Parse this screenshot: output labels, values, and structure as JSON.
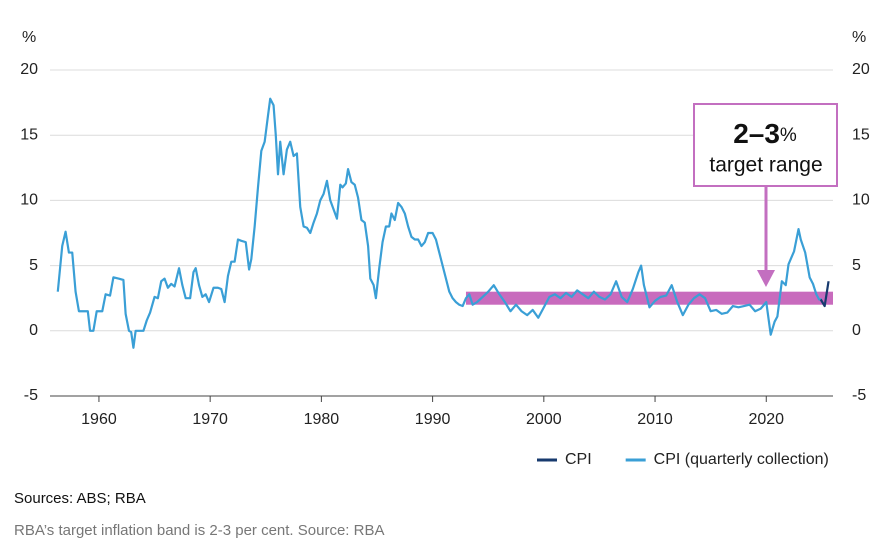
{
  "chart_data": {
    "type": "line",
    "y_label": "%",
    "y2_label": "%",
    "xlim": [
      1955.6,
      2026
    ],
    "xticks": [
      1960,
      1970,
      1980,
      1990,
      2000,
      2010,
      2020
    ],
    "ylim": [
      -5,
      20
    ],
    "yticks": [
      -5,
      0,
      5,
      10,
      15,
      20
    ],
    "y2lim": [
      -5,
      20
    ],
    "y2ticks": [
      -5,
      0,
      5,
      10,
      15,
      20
    ],
    "grid": true,
    "legend": "bottom-right",
    "target_band": {
      "x": [
        1993,
        2026
      ],
      "y": [
        2,
        3
      ],
      "color": "#c86bbd"
    },
    "annotation": {
      "title": "2–3",
      "unit": "%",
      "text": "target range",
      "color": "#c36fc0"
    },
    "series": [
      {
        "name": "CPI",
        "color": "#173a6e",
        "x": [
          2024.9,
          2025.25,
          2025.6
        ],
        "values": [
          2.4,
          1.9,
          3.8
        ]
      },
      {
        "name": "CPI (quarterly collection)",
        "color": "#3a9fd6",
        "x": [
          1956.3,
          1956.7,
          1957.0,
          1957.3,
          1957.6,
          1957.9,
          1958.2,
          1958.6,
          1959.0,
          1959.2,
          1959.5,
          1959.8,
          1960.3,
          1960.6,
          1961.0,
          1961.3,
          1961.8,
          1962.2,
          1962.4,
          1962.7,
          1962.9,
          1963.1,
          1963.3,
          1963.7,
          1964.0,
          1964.3,
          1964.6,
          1965.0,
          1965.3,
          1965.6,
          1965.9,
          1966.2,
          1966.5,
          1966.8,
          1967.2,
          1967.5,
          1967.8,
          1968.2,
          1968.5,
          1968.7,
          1969.0,
          1969.3,
          1969.6,
          1969.9,
          1970.3,
          1970.7,
          1971.0,
          1971.3,
          1971.6,
          1971.9,
          1972.2,
          1972.5,
          1972.8,
          1973.2,
          1973.5,
          1973.7,
          1974.0,
          1974.3,
          1974.6,
          1974.9,
          1975.2,
          1975.4,
          1975.7,
          1975.9,
          1976.1,
          1976.3,
          1976.6,
          1976.9,
          1977.2,
          1977.5,
          1977.8,
          1978.1,
          1978.4,
          1978.7,
          1979.0,
          1979.3,
          1979.6,
          1979.9,
          1980.2,
          1980.5,
          1980.8,
          1981.1,
          1981.4,
          1981.7,
          1981.9,
          1982.2,
          1982.4,
          1982.7,
          1983.0,
          1983.3,
          1983.6,
          1983.9,
          1984.2,
          1984.4,
          1984.7,
          1984.9,
          1985.2,
          1985.5,
          1985.8,
          1986.1,
          1986.3,
          1986.6,
          1986.9,
          1987.2,
          1987.5,
          1987.8,
          1988.1,
          1988.4,
          1988.7,
          1989.0,
          1989.3,
          1989.6,
          1990.0,
          1990.3,
          1990.6,
          1990.9,
          1991.2,
          1991.5,
          1991.8,
          1992.1,
          1992.4,
          1992.7,
          1993.0,
          1993.3,
          1993.6,
          1994.0,
          1994.5,
          1995.0,
          1995.5,
          1996.0,
          1996.5,
          1997.0,
          1997.5,
          1998.0,
          1998.5,
          1999.0,
          1999.5,
          2000.0,
          2000.5,
          2001.0,
          2001.5,
          2002.0,
          2002.5,
          2003.0,
          2003.5,
          2004.0,
          2004.5,
          2005.0,
          2005.5,
          2006.0,
          2006.5,
          2007.0,
          2007.5,
          2008.0,
          2008.5,
          2008.75,
          2009.0,
          2009.5,
          2010.0,
          2010.5,
          2011.0,
          2011.5,
          2012.0,
          2012.5,
          2013.0,
          2013.5,
          2014.0,
          2014.5,
          2015.0,
          2015.5,
          2016.0,
          2016.5,
          2017.0,
          2017.5,
          2018.0,
          2018.5,
          2019.0,
          2019.5,
          2020.0,
          2020.4,
          2020.75,
          2021.0,
          2021.4,
          2021.75,
          2022.0,
          2022.5,
          2022.9,
          2023.1,
          2023.5,
          2023.9,
          2024.2,
          2024.5,
          2024.75,
          2025.0
        ],
        "values": [
          3.0,
          6.5,
          7.6,
          6.0,
          6.0,
          3.0,
          1.5,
          1.5,
          1.5,
          0.0,
          0.0,
          1.5,
          1.5,
          2.8,
          2.7,
          4.1,
          4.0,
          3.9,
          1.3,
          0.0,
          -0.1,
          -1.3,
          0.0,
          0.0,
          0.0,
          0.8,
          1.4,
          2.6,
          2.5,
          3.8,
          4.0,
          3.3,
          3.6,
          3.4,
          4.8,
          3.5,
          2.5,
          2.5,
          4.5,
          4.8,
          3.5,
          2.6,
          2.8,
          2.2,
          3.3,
          3.3,
          3.2,
          2.2,
          4.2,
          5.3,
          5.3,
          7.0,
          6.9,
          6.8,
          4.7,
          5.5,
          8.0,
          11.0,
          13.8,
          14.5,
          16.5,
          17.8,
          17.3,
          15.0,
          12.0,
          14.5,
          12.0,
          13.9,
          14.5,
          13.4,
          13.6,
          9.5,
          8.0,
          7.9,
          7.5,
          8.3,
          9.0,
          10.0,
          10.5,
          11.5,
          10.0,
          9.3,
          8.6,
          11.2,
          11.0,
          11.3,
          12.4,
          11.4,
          11.2,
          10.2,
          8.5,
          8.3,
          6.5,
          4.0,
          3.5,
          2.5,
          4.8,
          6.8,
          8.0,
          8.0,
          9.0,
          8.5,
          9.8,
          9.5,
          9.0,
          8.0,
          7.2,
          7.0,
          7.0,
          6.5,
          6.8,
          7.5,
          7.5,
          7.0,
          6.0,
          5.0,
          4.0,
          3.0,
          2.5,
          2.2,
          2.0,
          1.9,
          2.5,
          2.8,
          2.0,
          2.2,
          2.6,
          3.0,
          3.5,
          2.8,
          2.2,
          1.5,
          2.0,
          1.5,
          1.2,
          1.6,
          1.0,
          1.8,
          2.6,
          2.8,
          2.5,
          2.9,
          2.6,
          3.1,
          2.8,
          2.5,
          3.0,
          2.6,
          2.4,
          2.8,
          3.8,
          2.6,
          2.2,
          3.2,
          4.5,
          5.0,
          3.5,
          1.8,
          2.3,
          2.6,
          2.7,
          3.5,
          2.2,
          1.2,
          2.0,
          2.5,
          2.8,
          2.5,
          1.5,
          1.6,
          1.3,
          1.4,
          1.9,
          1.8,
          1.9,
          2.0,
          1.5,
          1.7,
          2.2,
          -0.3,
          0.7,
          1.1,
          3.8,
          3.5,
          5.1,
          6.1,
          7.8,
          7.0,
          6.0,
          4.1,
          3.6,
          2.8,
          2.4,
          2.4
        ]
      }
    ]
  },
  "sources": "Sources: ABS; RBA",
  "caption": "RBA’s target inflation band is 2-3 per cent. Source: RBA"
}
